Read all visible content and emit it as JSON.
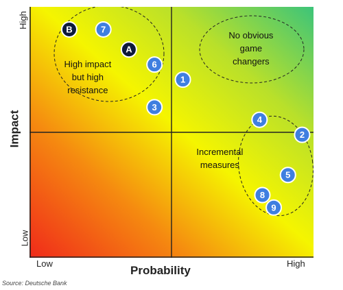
{
  "chart_data": {
    "type": "scatter",
    "title": "",
    "xlabel": "Probability",
    "ylabel": "Impact",
    "x_ticks": [
      "Low",
      "High"
    ],
    "y_ticks": [
      "High",
      "Low"
    ],
    "xlim": [
      0,
      10
    ],
    "ylim": [
      0,
      10
    ],
    "grid": false,
    "colors": {
      "numbered_point": "#3f7fe0",
      "lettered_point": "#0e1a3a",
      "background_top_right": "#3cc47a",
      "background_center": "#f5f500",
      "background_bottom_left": "#f02a1a"
    },
    "points": [
      {
        "label": "B",
        "x": 1.4,
        "y": 9.1,
        "kind": "letter"
      },
      {
        "label": "7",
        "x": 2.6,
        "y": 9.1,
        "kind": "number"
      },
      {
        "label": "A",
        "x": 3.5,
        "y": 8.3,
        "kind": "letter"
      },
      {
        "label": "6",
        "x": 4.4,
        "y": 7.7,
        "kind": "number"
      },
      {
        "label": "1",
        "x": 5.4,
        "y": 7.1,
        "kind": "number"
      },
      {
        "label": "3",
        "x": 4.4,
        "y": 6.0,
        "kind": "number"
      },
      {
        "label": "4",
        "x": 8.1,
        "y": 5.5,
        "kind": "number"
      },
      {
        "label": "2",
        "x": 9.6,
        "y": 4.9,
        "kind": "number"
      },
      {
        "label": "5",
        "x": 9.1,
        "y": 3.3,
        "kind": "number"
      },
      {
        "label": "8",
        "x": 8.2,
        "y": 2.5,
        "kind": "number"
      },
      {
        "label": "9",
        "x": 8.6,
        "y": 2.0,
        "kind": "number"
      }
    ],
    "annotations": [
      {
        "lines": [
          "High impact",
          "but high",
          "resistance"
        ],
        "x": 2.05,
        "y": 7.6
      },
      {
        "lines": [
          "No obvious",
          "game",
          "changers"
        ],
        "x": 7.8,
        "y": 8.75
      },
      {
        "lines": [
          "Incremental",
          "measures"
        ],
        "x": 6.7,
        "y": 4.1
      }
    ]
  },
  "axis": {
    "y_high": "High",
    "y_low": "Low",
    "y_title": "Impact",
    "x_low": "Low",
    "x_high": "High",
    "x_title": "Probability"
  },
  "source": "Source: Deutsche Bank"
}
